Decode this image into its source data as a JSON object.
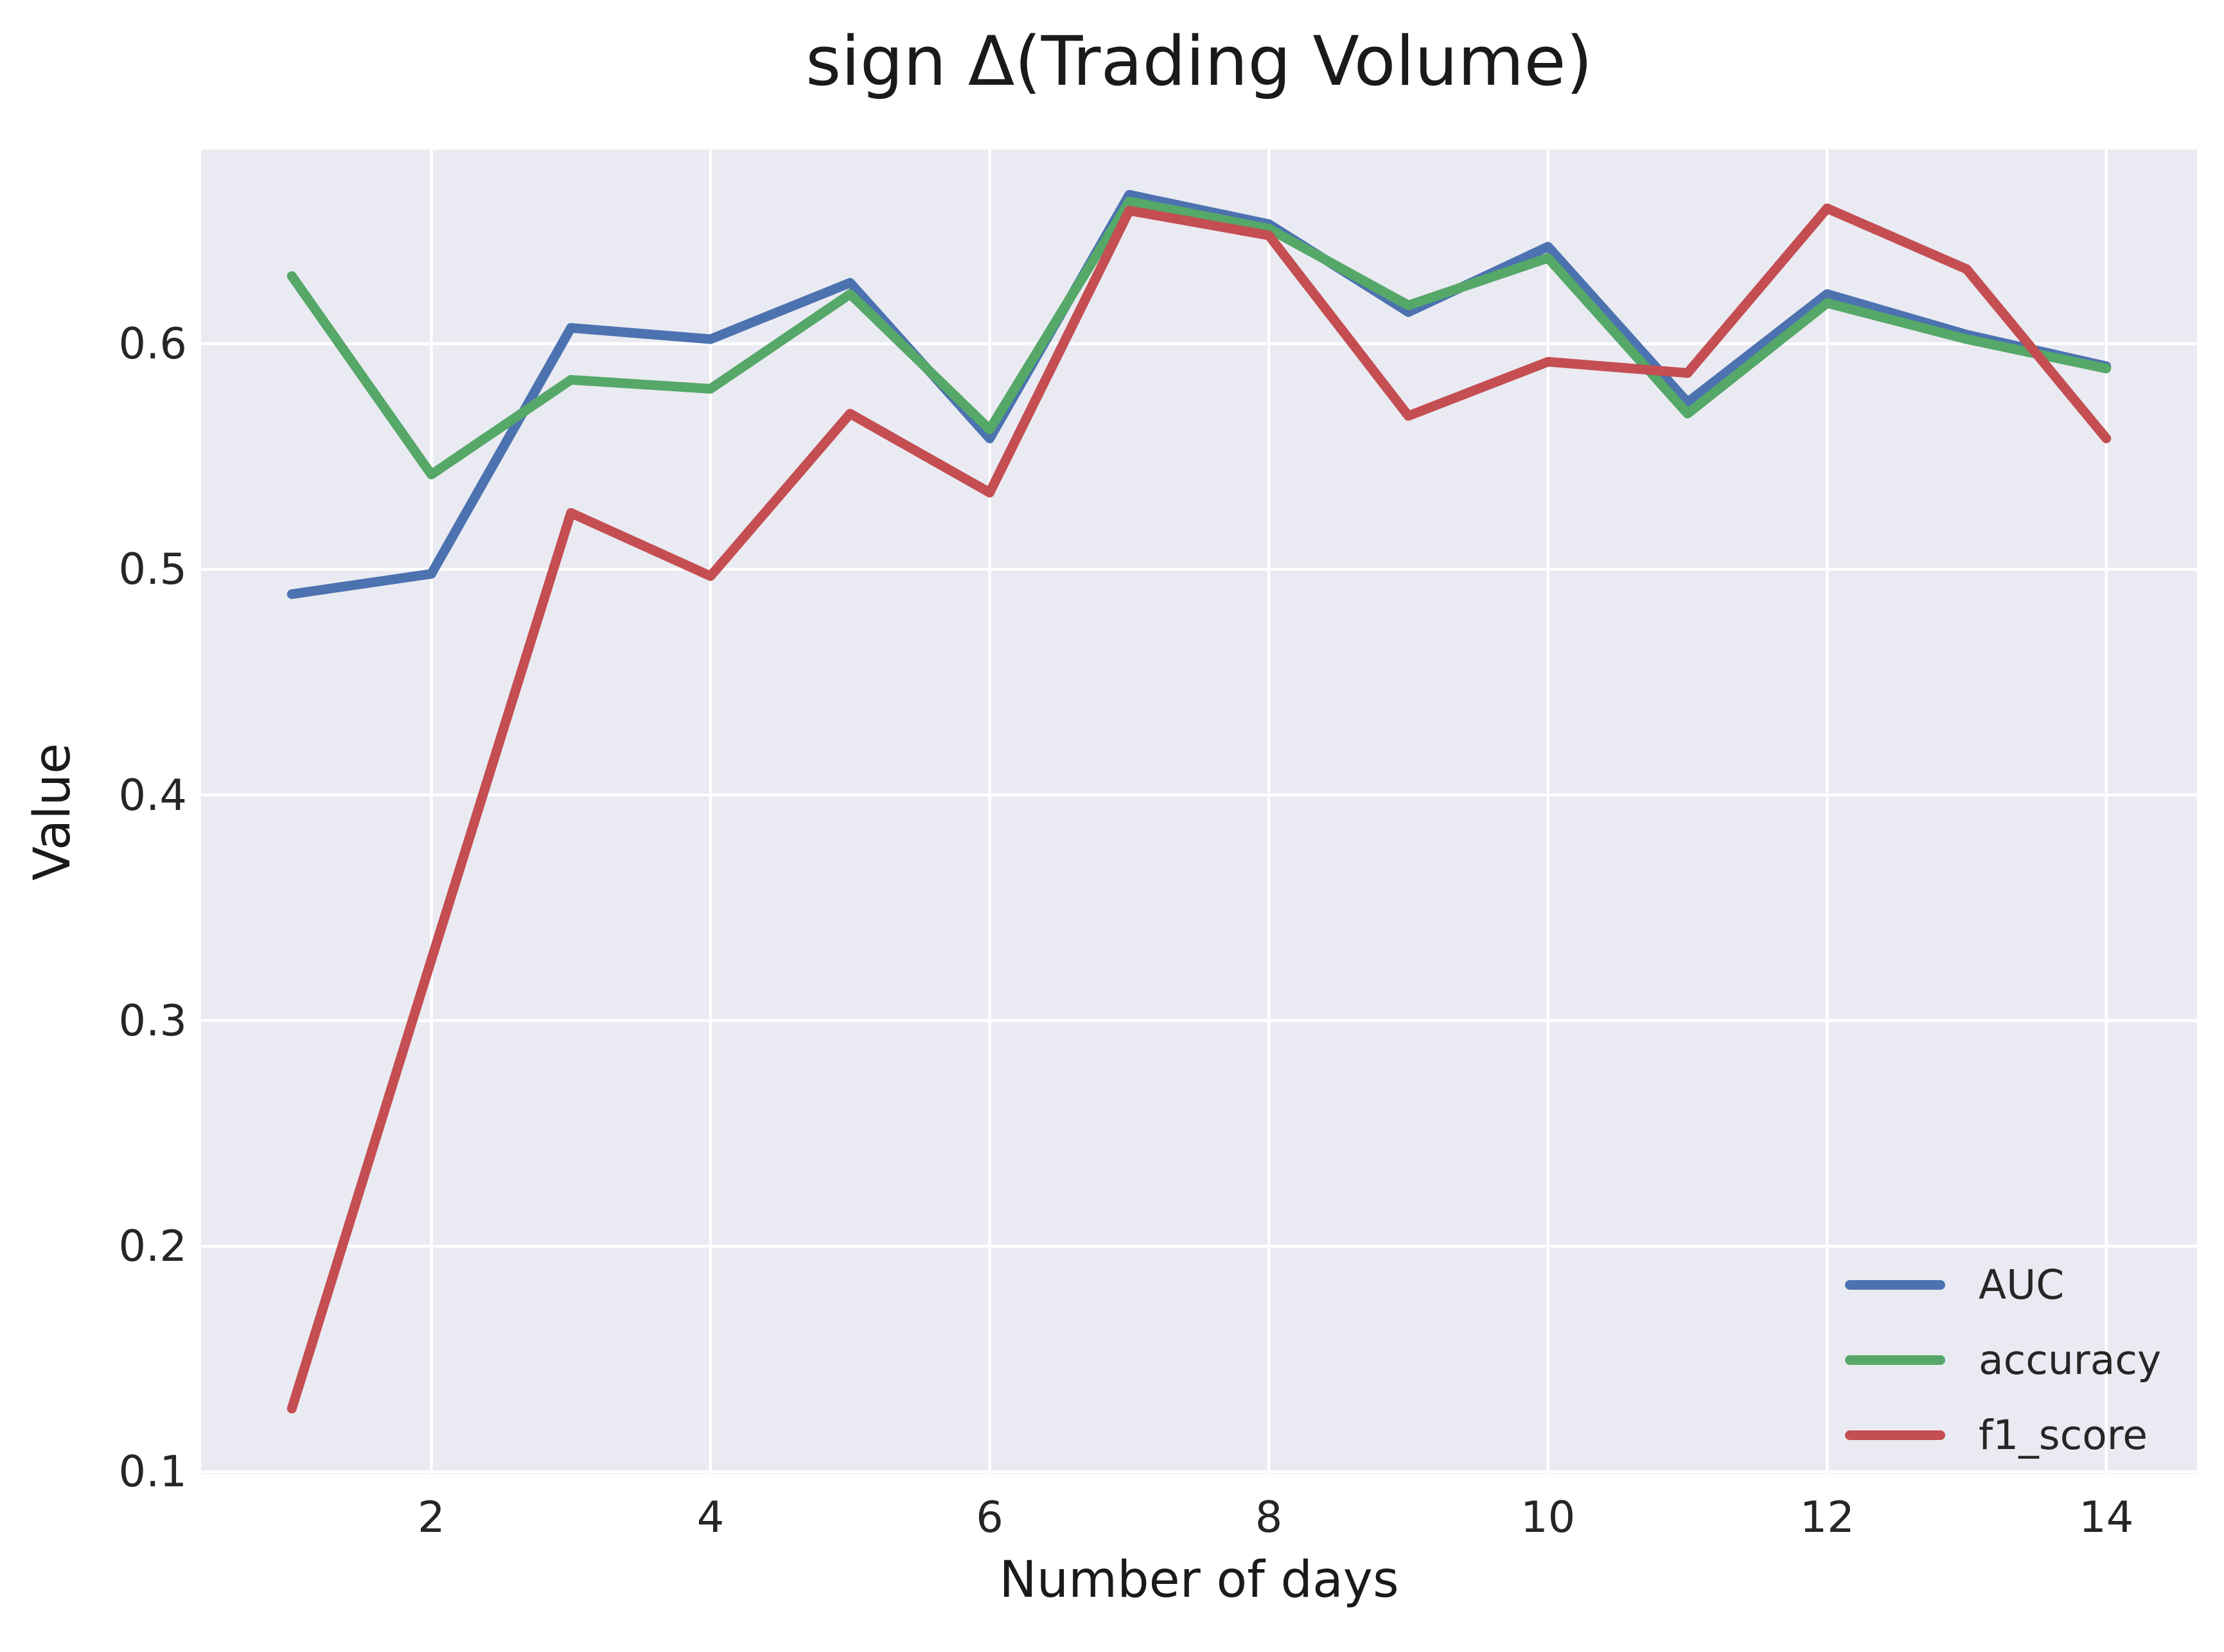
{
  "chart_data": {
    "type": "line",
    "title": "sign Δ(Trading Volume)",
    "xlabel": "Number of days",
    "ylabel": "Value",
    "x": [
      1,
      2,
      3,
      4,
      5,
      6,
      7,
      8,
      9,
      10,
      11,
      12,
      13,
      14
    ],
    "series": [
      {
        "name": "AUC",
        "color": "#4C72B0",
        "values": [
          0.489,
          0.498,
          0.607,
          0.602,
          0.627,
          0.558,
          0.666,
          0.653,
          0.614,
          0.643,
          0.574,
          0.622,
          0.604,
          0.59
        ]
      },
      {
        "name": "accuracy",
        "color": "#55A868",
        "values": [
          0.63,
          0.542,
          0.584,
          0.58,
          0.622,
          0.562,
          0.663,
          0.651,
          0.617,
          0.638,
          0.569,
          0.618,
          0.602,
          0.589
        ]
      },
      {
        "name": "f1_score",
        "color": "#C44E52",
        "values": [
          0.128,
          0.327,
          0.525,
          0.497,
          0.569,
          0.534,
          0.659,
          0.648,
          0.568,
          0.592,
          0.587,
          0.66,
          0.633,
          0.558
        ]
      }
    ],
    "xtick_values": [
      2,
      4,
      6,
      8,
      10,
      12,
      14
    ],
    "xtick_labels": [
      "2",
      "4",
      "6",
      "8",
      "10",
      "12",
      "14"
    ],
    "ytick_values": [
      0.1,
      0.2,
      0.3,
      0.4,
      0.5,
      0.6
    ],
    "ytick_labels": [
      "0.1",
      "0.2",
      "0.3",
      "0.4",
      "0.5",
      "0.6"
    ],
    "xlim": [
      0.35,
      14.65
    ],
    "ylim": [
      0.099,
      0.686
    ],
    "grid": true,
    "legend_position": "lower right",
    "colors": {
      "axes_background": "#EAEAF2",
      "gridline": "#FFFFFF",
      "text": "#262626",
      "figure_background": "#FFFFFF"
    }
  }
}
